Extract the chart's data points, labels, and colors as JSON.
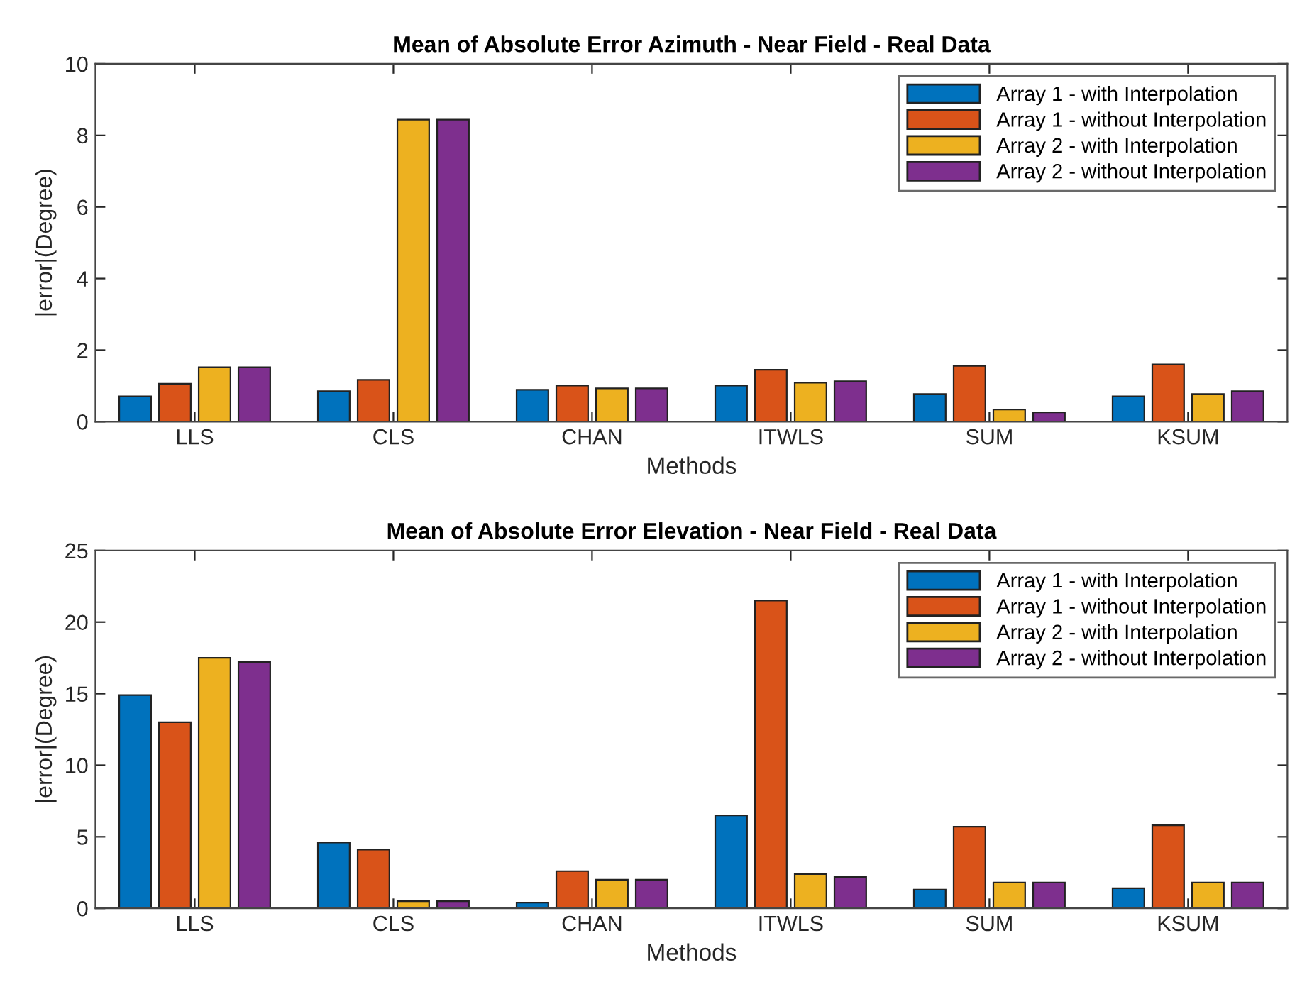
{
  "chart_data": [
    {
      "type": "bar",
      "title": "Mean of Absolute Error Azimuth - Near Field - Real Data",
      "xlabel": "Methods",
      "ylabel": "|error|(Degree)",
      "categories": [
        "LLS",
        "CLS",
        "CHAN",
        "ITWLS",
        "SUM",
        "KSUM"
      ],
      "series": [
        {
          "name": "Array 1 - with Interpolation",
          "color": "#0072bd",
          "values": [
            0.71,
            0.85,
            0.89,
            1.01,
            0.77,
            0.71
          ]
        },
        {
          "name": "Array 1 - without Interpolation",
          "color": "#d95319",
          "values": [
            1.06,
            1.17,
            1.01,
            1.45,
            1.56,
            1.6
          ]
        },
        {
          "name": "Array 2 - with Interpolation",
          "color": "#edb120",
          "values": [
            1.52,
            8.44,
            0.93,
            1.09,
            0.34,
            0.77
          ]
        },
        {
          "name": "Array 2 - without Interpolation",
          "color": "#7e2f8e",
          "values": [
            1.52,
            8.44,
            0.93,
            1.13,
            0.26,
            0.85
          ]
        }
      ],
      "ylim": [
        0,
        10
      ],
      "yticks": [
        0,
        2,
        4,
        6,
        8,
        10
      ],
      "legend": "top right",
      "grid": false
    },
    {
      "type": "bar",
      "title": "Mean of Absolute Error Elevation - Near Field - Real Data",
      "xlabel": "Methods",
      "ylabel": "|error|(Degree)",
      "categories": [
        "LLS",
        "CLS",
        "CHAN",
        "ITWLS",
        "SUM",
        "KSUM"
      ],
      "series": [
        {
          "name": "Array 1 - with Interpolation",
          "color": "#0072bd",
          "values": [
            14.9,
            4.6,
            0.4,
            6.5,
            1.3,
            1.4
          ]
        },
        {
          "name": "Array 1 - without Interpolation",
          "color": "#d95319",
          "values": [
            13.0,
            4.1,
            2.6,
            21.5,
            5.7,
            5.8
          ]
        },
        {
          "name": "Array 2 - with Interpolation",
          "color": "#edb120",
          "values": [
            17.5,
            0.5,
            2.0,
            2.4,
            1.8,
            1.8
          ]
        },
        {
          "name": "Array 2 - without Interpolation",
          "color": "#7e2f8e",
          "values": [
            17.2,
            0.5,
            2.0,
            2.2,
            1.8,
            1.8
          ]
        }
      ],
      "ylim": [
        0,
        25
      ],
      "yticks": [
        0,
        5,
        10,
        15,
        20,
        25
      ],
      "legend": "top right",
      "grid": false
    }
  ]
}
